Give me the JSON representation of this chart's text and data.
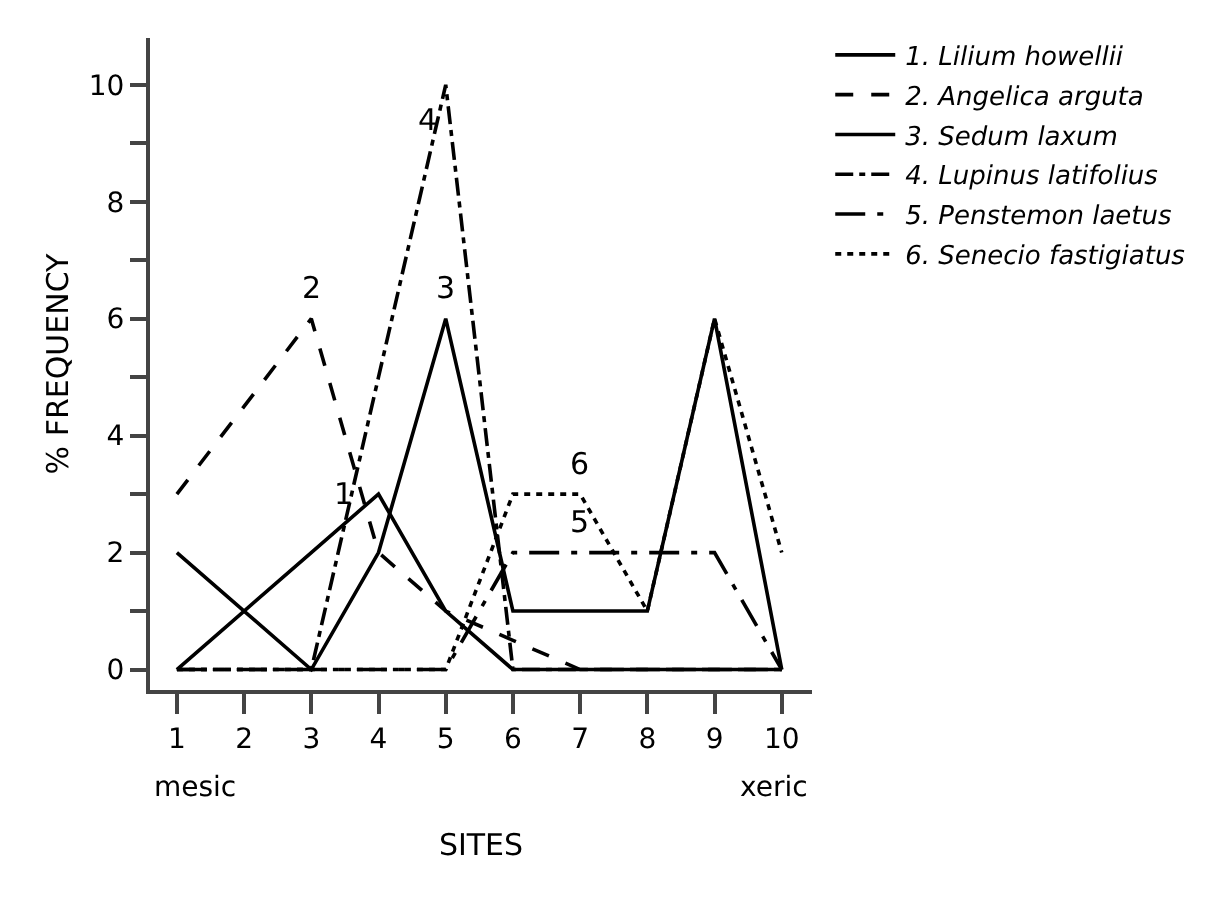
{
  "chart_data": {
    "type": "line",
    "xlabel": "SITES",
    "ylabel": "% FREQUENCY",
    "x": [
      1,
      2,
      3,
      4,
      5,
      6,
      7,
      8,
      9,
      10
    ],
    "xlim": [
      0.6,
      10.45
    ],
    "xticks": [
      1,
      2,
      3,
      4,
      5,
      6,
      7,
      8,
      9,
      10
    ],
    "ylim": [
      -0.35,
      10.8
    ],
    "yticks": [
      0,
      {
        "value": 1,
        "label": null
      },
      2,
      {
        "value": 3,
        "label": null
      },
      4,
      {
        "value": 5,
        "label": null
      },
      6,
      {
        "value": 7,
        "label": null
      },
      8,
      {
        "value": 9,
        "label": null
      },
      10
    ],
    "grid": false,
    "legend": "top right",
    "marker": "none",
    "series": [
      {
        "name": "1. Lilium howellii",
        "color": "#000000",
        "line_style": "solid",
        "values": [
          2,
          1,
          2,
          3,
          1,
          0,
          0,
          0,
          0,
          0
        ]
      },
      {
        "name": "2. Angelica arguta",
        "color": "#000000",
        "line_style": "dashed",
        "values": [
          3,
          4.5,
          6,
          2,
          1,
          0.5,
          0,
          0,
          0,
          0
        ]
      },
      {
        "name": "3. Sedum laxum",
        "color": "#000000",
        "line_style": "solid",
        "values": [
          0,
          1,
          0,
          2,
          6,
          1,
          1,
          1,
          6,
          0
        ]
      },
      {
        "name": "4. Lupinus latifolius",
        "color": "#000000",
        "line_style": "dashdot",
        "values": [
          0,
          0,
          0,
          5,
          10,
          0,
          0,
          0,
          0,
          0
        ]
      },
      {
        "name": "5. Penstemon laetus",
        "color": "#000000",
        "line_style": "longdashdot",
        "values": [
          0,
          0,
          0,
          0,
          0,
          2,
          2,
          2,
          2,
          0
        ]
      },
      {
        "name": "6. Senecio fastigiatus",
        "color": "#000000",
        "line_style": "dotted",
        "values": [
          0,
          0,
          0,
          0,
          0,
          3,
          3,
          1,
          6,
          2
        ]
      }
    ],
    "annotations": [
      {
        "text": "1",
        "x": 3.5,
        "y": 2.5
      },
      {
        "text": "2",
        "x": 3,
        "y": 6
      },
      {
        "text": "3",
        "x": 5,
        "y": 6
      },
      {
        "text": "4",
        "x": 4.75,
        "y": 8.9
      },
      {
        "text": "5",
        "x": 7,
        "y": 2
      },
      {
        "text": "6",
        "x": 7,
        "y": 3
      },
      "mesic",
      "xeric"
    ]
  }
}
